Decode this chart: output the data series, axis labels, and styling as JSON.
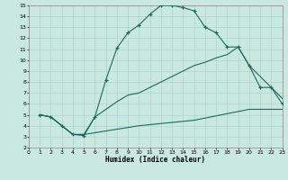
{
  "xlabel": "Humidex (Indice chaleur)",
  "bg_color": "#c8e8e0",
  "grid_color": "#a8d0c8",
  "line_color": "#1a6b5a",
  "xlim": [
    0,
    23
  ],
  "ylim": [
    2,
    15
  ],
  "xticks": [
    0,
    1,
    2,
    3,
    4,
    5,
    6,
    7,
    8,
    9,
    10,
    11,
    12,
    13,
    14,
    15,
    16,
    17,
    18,
    19,
    20,
    21,
    22,
    23
  ],
  "yticks": [
    2,
    3,
    4,
    5,
    6,
    7,
    8,
    9,
    10,
    11,
    12,
    13,
    14,
    15
  ],
  "line1_x": [
    1,
    2,
    3,
    4,
    5,
    6,
    7,
    8,
    9,
    10,
    11,
    12,
    13,
    14,
    15,
    16,
    17,
    18,
    19,
    20,
    21,
    22,
    23
  ],
  "line1_y": [
    5.0,
    4.8,
    4.0,
    3.2,
    3.1,
    4.8,
    8.2,
    11.1,
    12.5,
    13.2,
    14.2,
    15.0,
    15.0,
    14.8,
    14.5,
    13.0,
    12.5,
    11.2,
    11.2,
    9.5,
    7.5,
    7.5,
    6.0
  ],
  "line2_x": [
    1,
    2,
    3,
    4,
    5,
    6,
    7,
    8,
    9,
    10,
    11,
    12,
    13,
    14,
    15,
    16,
    17,
    18,
    19,
    20,
    21,
    22,
    23
  ],
  "line2_y": [
    5.0,
    4.8,
    4.0,
    3.2,
    3.2,
    4.8,
    5.5,
    6.2,
    6.8,
    7.0,
    7.5,
    8.0,
    8.5,
    9.0,
    9.5,
    9.8,
    10.2,
    10.5,
    11.2,
    9.5,
    8.5,
    7.5,
    6.5
  ],
  "line3_x": [
    1,
    2,
    3,
    4,
    5,
    10,
    15,
    20,
    23
  ],
  "line3_y": [
    5.0,
    4.8,
    4.0,
    3.2,
    3.2,
    4.0,
    4.5,
    5.5,
    5.5
  ]
}
